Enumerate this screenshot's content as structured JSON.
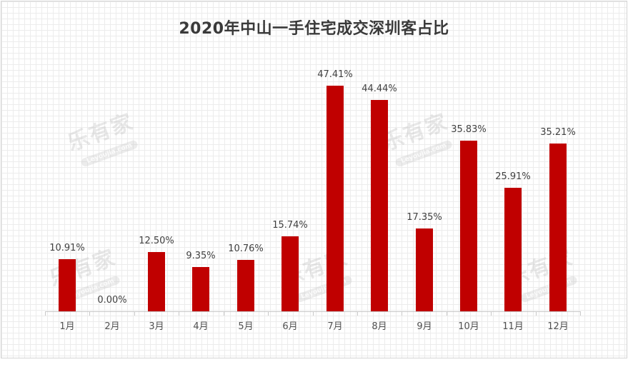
{
  "chart_data": {
    "type": "bar",
    "title": "2020年中山一手住宅成交深圳客占比",
    "xlabel": "",
    "ylabel": "",
    "categories": [
      "1月",
      "2月",
      "3月",
      "4月",
      "5月",
      "6月",
      "7月",
      "8月",
      "9月",
      "10月",
      "11月",
      "12月"
    ],
    "values": [
      10.91,
      0.0,
      12.5,
      9.35,
      10.76,
      15.74,
      47.41,
      44.44,
      17.35,
      35.83,
      25.91,
      35.21
    ],
    "value_labels": [
      "10.91%",
      "0.00%",
      "12.50%",
      "9.35%",
      "10.76%",
      "15.74%",
      "47.41%",
      "44.44%",
      "17.35%",
      "35.83%",
      "25.91%",
      "35.21%"
    ],
    "unit": "%",
    "ylim": [
      0,
      53.4
    ],
    "grid": false,
    "legend": null,
    "bar_color": "#c00000"
  },
  "watermark": {
    "text": "乐有家",
    "subtext": "Leyoujia.com"
  }
}
